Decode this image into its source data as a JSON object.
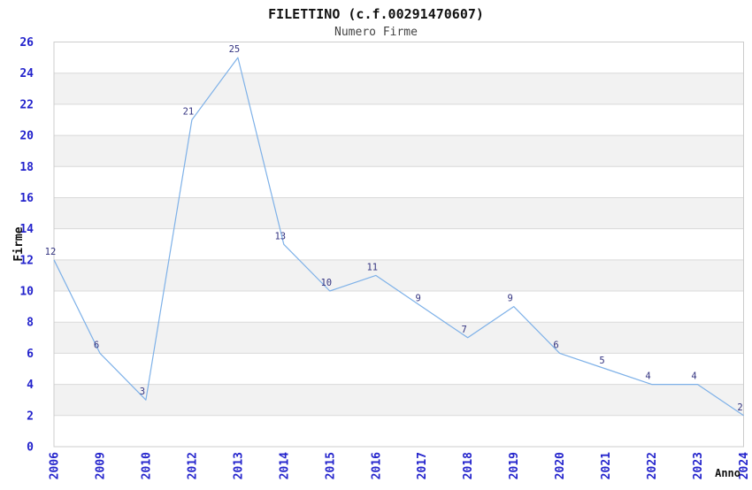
{
  "chart_data": {
    "type": "line",
    "title": "FILETTINO (c.f.00291470607)",
    "subtitle": "Numero Firme",
    "xlabel": "Anno",
    "ylabel": "Firme",
    "categories": [
      "2006",
      "2009",
      "2010",
      "2012",
      "2013",
      "2014",
      "2015",
      "2016",
      "2017",
      "2018",
      "2019",
      "2020",
      "2021",
      "2022",
      "2023",
      "2024"
    ],
    "values": [
      12,
      6,
      3,
      21,
      25,
      13,
      10,
      11,
      9,
      7,
      9,
      6,
      5,
      4,
      4,
      2
    ],
    "ylim": [
      0,
      26
    ],
    "ytick_step": 2,
    "grid": "horizontal-only",
    "legend": "none",
    "band_pattern": "alternating gray bands on 2-4,6-8,10-12,14-16,18-20,22-24",
    "colors": {
      "line": "#7eb1e8",
      "tick_label": "#2323cc",
      "data_label": "#333380",
      "band_fill": "#f2f2f2",
      "grid_line": "#d9d9d9",
      "plot_border": "#cccccc",
      "title_color": "#111111",
      "subtitle_color": "#444444",
      "axis_title_color": "#111111",
      "background": "#ffffff"
    }
  }
}
